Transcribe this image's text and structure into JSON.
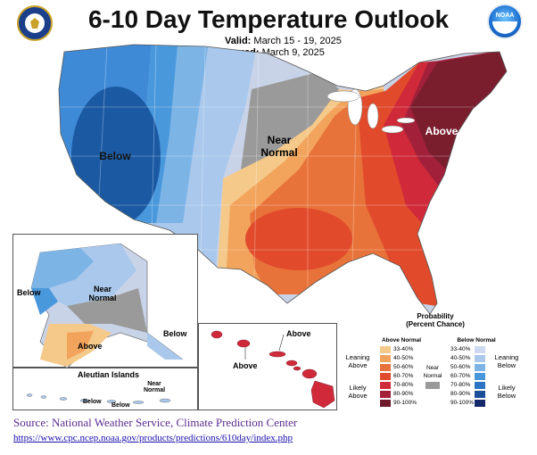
{
  "header": {
    "title": "6-10 Day Temperature Outlook",
    "valid_label": "Valid:",
    "valid_value": "March 15 - 19, 2025",
    "issued_label": "Issued:",
    "issued_value": "March 9, 2025",
    "noaa_text": "NOAA"
  },
  "map": {
    "regions": {
      "below": "Below",
      "near_normal": "Near\nNormal",
      "above": "Above"
    },
    "alaska": {
      "below_west": "Below",
      "near_normal": "Near\nNormal",
      "above": "Above",
      "below_east": "Below"
    },
    "aleutian": {
      "title": "Aleutian Islands",
      "near_normal": "Near\nNormal",
      "below": "Below",
      "below2": "Below"
    },
    "hawaii": {
      "above1": "Above",
      "above2": "Above"
    }
  },
  "legend": {
    "title": "Probability\n(Percent Chance)",
    "above_header": "Above Normal",
    "below_header": "Below Normal",
    "near_header": "Near\nNormal",
    "leaning_above": "Leaning\nAbove",
    "likely_above": "Likely\nAbove",
    "leaning_below": "Leaning\nBelow",
    "likely_below": "Likely\nBelow",
    "ranges": [
      "33-40%",
      "40-50%",
      "50-60%",
      "60-70%",
      "70-80%",
      "80-90%",
      "90-100%"
    ],
    "above_colors": [
      "#f4c98a",
      "#f2a35c",
      "#e8733a",
      "#e14b2c",
      "#d02a3a",
      "#a3203a",
      "#6e1a2c"
    ],
    "below_colors": [
      "#cfdaf0",
      "#a9c8ec",
      "#7db4e6",
      "#4a98dc",
      "#2b74c4",
      "#1b4f9a",
      "#14286a"
    ],
    "near_color": "#9a9a9a"
  },
  "footer": {
    "source": "Source: National Weather Service, Climate Prediction Center",
    "url": "https://www.cpc.ncep.noaa.gov/products/predictions/610day/index.php"
  }
}
